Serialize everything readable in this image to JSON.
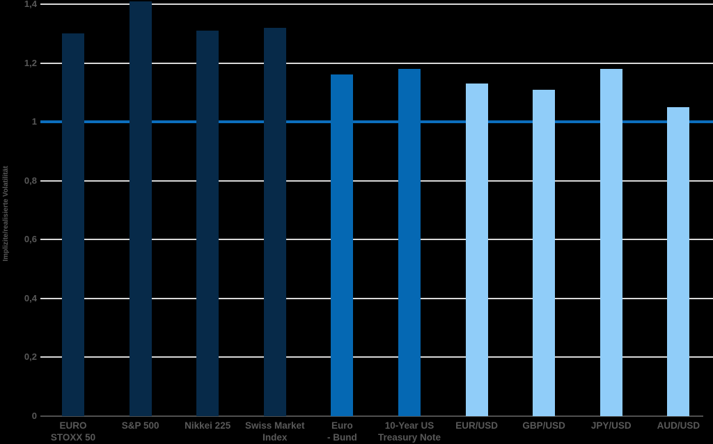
{
  "chart_data": {
    "type": "bar",
    "title": "",
    "xlabel": "",
    "ylabel": "Implizite/realisierte Volatilität",
    "ylim": [
      0,
      1.4
    ],
    "grid": true,
    "legend": false,
    "yticks": [
      0,
      0.2,
      0.4,
      0.6,
      0.8,
      1,
      1.2,
      1.4
    ],
    "ytick_labels": [
      "0",
      "0,2",
      "0,4",
      "0,6",
      "0,8",
      "1",
      "1,2",
      "1,4"
    ],
    "reference_line": {
      "value": 1,
      "color": "#0c6ebd"
    },
    "categories": [
      "EURO STOXX 50",
      "S&P 500",
      "Nikkei 225",
      "Swiss Market Index",
      "Euro - Bund",
      "10-Year US Treasury Note",
      "EUR/USD",
      "GBP/USD",
      "JPY/USD",
      "AUD/USD"
    ],
    "category_lines": [
      [
        "EURO",
        "STOXX 50"
      ],
      [
        "S&P 500"
      ],
      [
        "Nikkei 225"
      ],
      [
        "Swiss Market",
        "Index"
      ],
      [
        "Euro",
        "- Bund"
      ],
      [
        "10-Year US",
        "Treasury Note"
      ],
      [
        "EUR/USD"
      ],
      [
        "GBP/USD"
      ],
      [
        "JPY/USD"
      ],
      [
        "AUD/USD"
      ]
    ],
    "values": [
      1.3,
      1.41,
      1.31,
      1.32,
      1.16,
      1.18,
      1.13,
      1.11,
      1.18,
      1.05
    ],
    "bar_colors": [
      "#072a49",
      "#072a49",
      "#072a49",
      "#072a49",
      "#0568b3",
      "#0568b3",
      "#90cdf9",
      "#90cdf9",
      "#90cdf9",
      "#90cdf9"
    ]
  },
  "colors": {
    "background": "#000000",
    "gridline": "#d9d9d9",
    "baseline": "#4f4f4f",
    "tick_text": "#595959",
    "reference_line": "#0c6ebd"
  }
}
